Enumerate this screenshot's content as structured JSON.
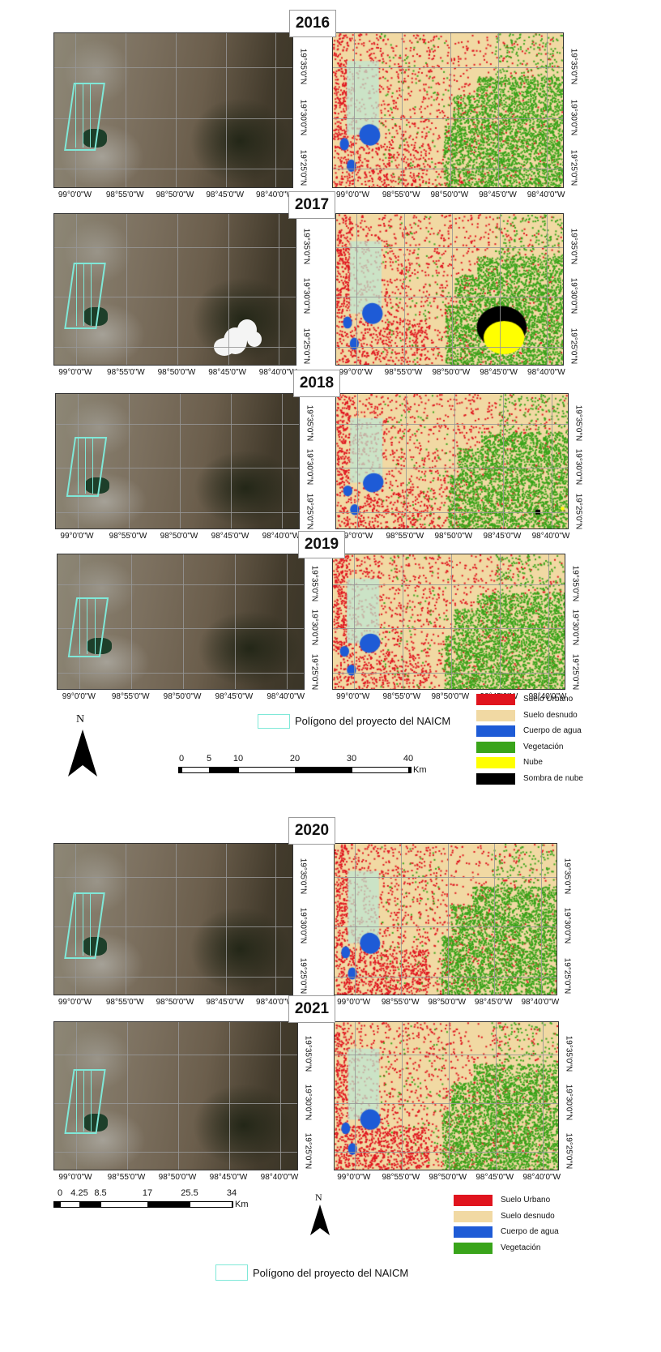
{
  "panels_a": [
    {
      "year": "2016",
      "top": 40
    },
    {
      "year": "2017",
      "top": 263
    },
    {
      "year": "2018",
      "top": 485
    },
    {
      "year": "2019",
      "top": 683
    }
  ],
  "panels_b": [
    {
      "year": "2020",
      "top": 1040
    },
    {
      "year": "2021",
      "top": 1260
    }
  ],
  "x_ticks": [
    "99°0'0\"W",
    "98°55'0\"W",
    "98°50'0\"W",
    "98°45'0\"W",
    "98°40'0\"W"
  ],
  "y_ticks": [
    "19°35'0\"N",
    "19°30'0\"N",
    "19°25'0\"N"
  ],
  "legend_top": {
    "polygon_label": "Polígono del proyecto del NAICM",
    "north": "N",
    "classes": [
      {
        "label": "Suelo Urbano",
        "color": "#e0141e"
      },
      {
        "label": "Suelo desnudo",
        "color": "#f1d9a3"
      },
      {
        "label": "Cuerpo de agua",
        "color": "#1e5bd6"
      },
      {
        "label": "Vegetación",
        "color": "#39a41a"
      },
      {
        "label": "Nube",
        "color": "#ffff00"
      },
      {
        "label": "Sombra de nube",
        "color": "#000000"
      }
    ],
    "scale_labels": [
      "0",
      "5",
      "10",
      "20",
      "30",
      "40"
    ],
    "scale_unit": "Km"
  },
  "legend_bottom": {
    "polygon_label": "Polígono del proyecto del NAICM",
    "north": "N",
    "classes": [
      {
        "label": "Suelo Urbano",
        "color": "#e0141e"
      },
      {
        "label": "Suelo desnudo",
        "color": "#f1d9a3"
      },
      {
        "label": "Cuerpo de agua",
        "color": "#1e5bd6"
      },
      {
        "label": "Vegetación",
        "color": "#39a41a"
      }
    ],
    "scale_labels": [
      "0",
      "4.25",
      "8.5",
      "17",
      "25.5",
      "34"
    ],
    "scale_unit": "Km"
  },
  "colors": {
    "urban": "#e0141e",
    "bare": "#f1d9a3",
    "water": "#1e5bd6",
    "veg": "#39a41a",
    "cloud": "#ffff00",
    "shadow": "#000000",
    "polygon": "#7fe8d8"
  }
}
